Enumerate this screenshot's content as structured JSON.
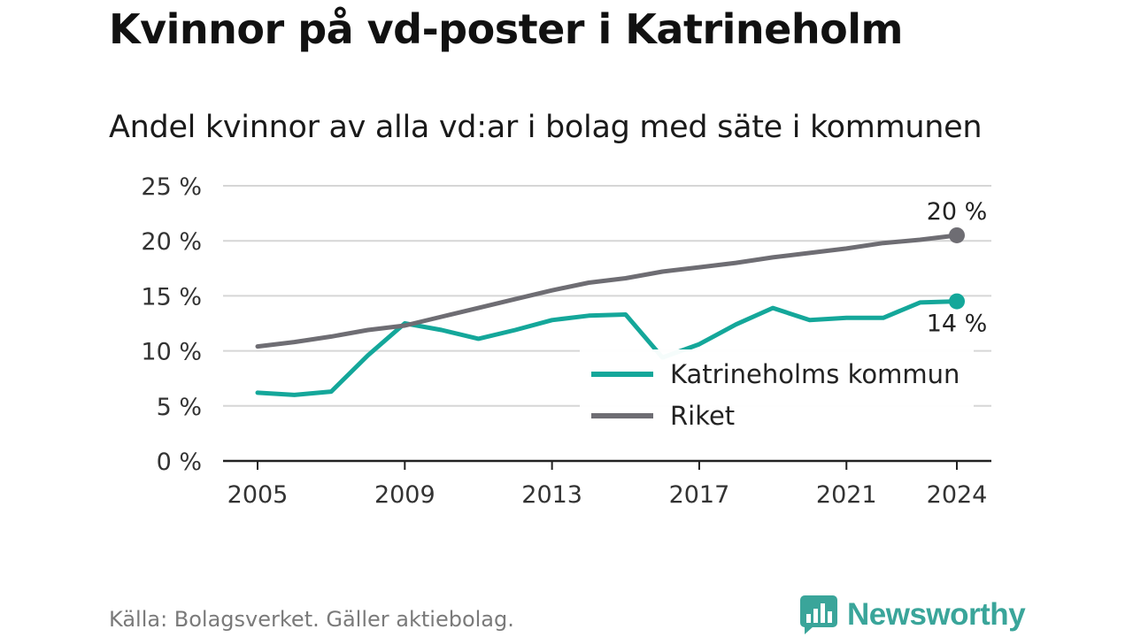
{
  "header": {
    "title": "Kvinnor på vd-poster i Katrineholm",
    "subtitle": "Andel kvinnor av alla vd:ar i bolag med säte i kommunen"
  },
  "footer": {
    "source": "Källa: Bolagsverket. Gäller aktiebolag.",
    "brand": "Newsworthy",
    "brand_icon": "chart-bubble-icon"
  },
  "colors": {
    "katrineholm": "#14a79a",
    "riket": "#6e6d73",
    "grid": "#d6d6d6",
    "axis": "#222222",
    "brand": "#3aa59a"
  },
  "chart_data": {
    "type": "line",
    "title": "Andel kvinnor av alla vd:ar i bolag med säte i kommunen",
    "x_ticks": [
      2005,
      2009,
      2013,
      2017,
      2021,
      2024
    ],
    "y_ticks": [
      0,
      5,
      10,
      15,
      20,
      25
    ],
    "y_tick_labels": [
      "0 %",
      "5 %",
      "10 %",
      "15 %",
      "20 %",
      "25 %"
    ],
    "xlim": [
      2005,
      2024
    ],
    "ylim": [
      0,
      25
    ],
    "grid": "horizontal",
    "legend_position": "bottom-right",
    "series": [
      {
        "name": "Katrineholms kommun",
        "key": "katrineholm",
        "x": [
          2005,
          2006,
          2007,
          2008,
          2009,
          2010,
          2011,
          2012,
          2013,
          2014,
          2015,
          2016,
          2017,
          2018,
          2019,
          2020,
          2021,
          2022,
          2023,
          2024
        ],
        "values": [
          6.2,
          6.0,
          6.3,
          9.6,
          12.5,
          11.9,
          11.1,
          11.9,
          12.8,
          13.2,
          13.3,
          9.4,
          10.6,
          12.4,
          13.9,
          12.8,
          13.0,
          13.0,
          14.4,
          14.5
        ],
        "end_label": "14 %"
      },
      {
        "name": "Riket",
        "key": "riket",
        "x": [
          2005,
          2006,
          2007,
          2008,
          2009,
          2010,
          2011,
          2012,
          2013,
          2014,
          2015,
          2016,
          2017,
          2018,
          2019,
          2020,
          2021,
          2022,
          2023,
          2024
        ],
        "values": [
          10.4,
          10.8,
          11.3,
          11.9,
          12.3,
          13.1,
          13.9,
          14.7,
          15.5,
          16.2,
          16.6,
          17.2,
          17.6,
          18.0,
          18.5,
          18.9,
          19.3,
          19.8,
          20.1,
          20.5
        ],
        "end_label": "20 %"
      }
    ]
  }
}
